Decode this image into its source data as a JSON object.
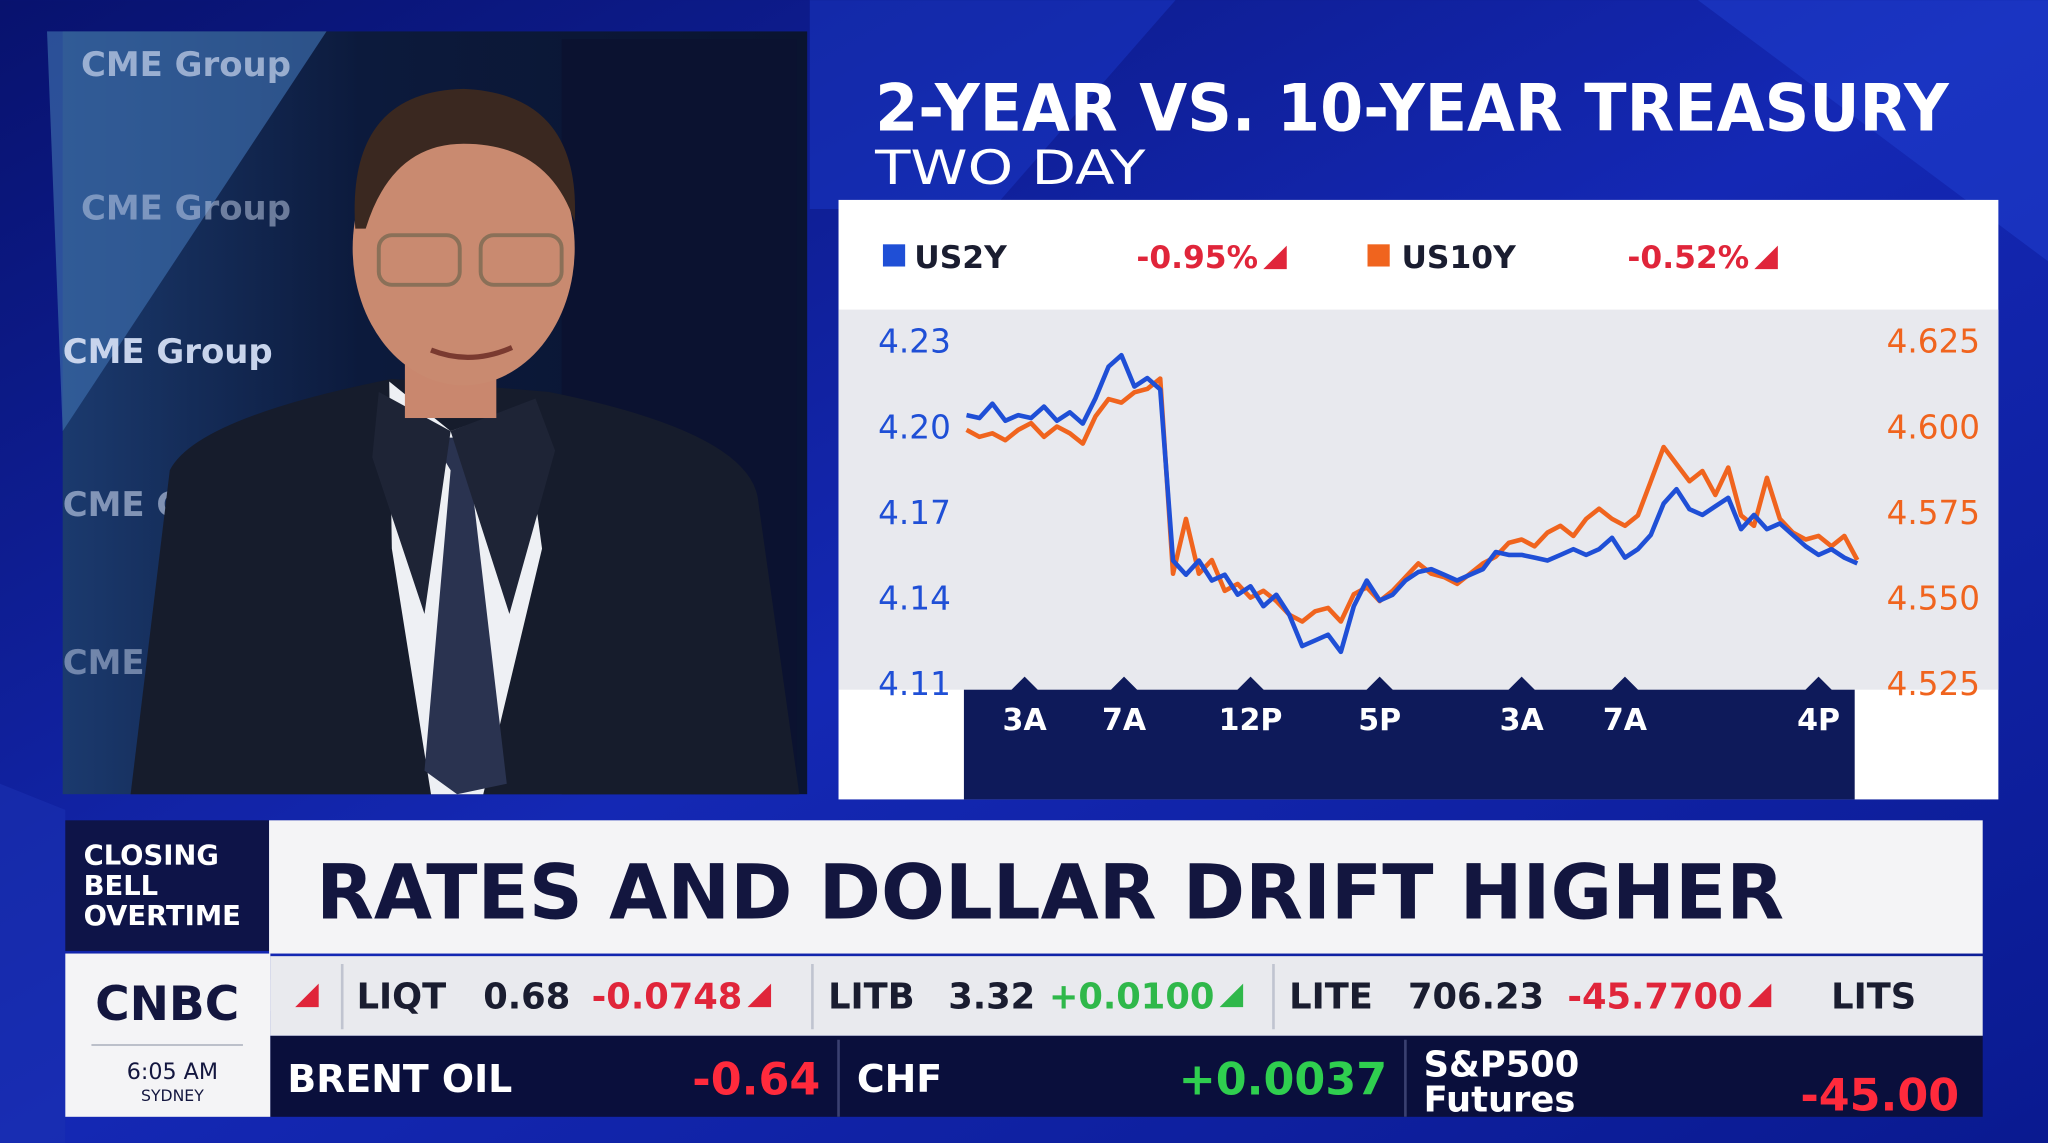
{
  "background": {
    "logo": "CME Group"
  },
  "chart_data": {
    "type": "line",
    "title": "2-YEAR VS. 10-YEAR TREASURY",
    "subtitle": "TWO DAY",
    "x": [
      0,
      1,
      2,
      3,
      4,
      5,
      6,
      7,
      8,
      9,
      10,
      11,
      12,
      13,
      14,
      15,
      16,
      17,
      18,
      19,
      20,
      21,
      22,
      23,
      24,
      25,
      26,
      27,
      28,
      29,
      30,
      31,
      32,
      33,
      34,
      35,
      36,
      37,
      38,
      39,
      40,
      41,
      42,
      43,
      44,
      45,
      46,
      47,
      48,
      49,
      50,
      51,
      52,
      53,
      54,
      55,
      56,
      57,
      58,
      59,
      60,
      61,
      62,
      63,
      64,
      65,
      66,
      67,
      68,
      69
    ],
    "xlim": [
      0,
      69
    ],
    "xticks": [
      {
        "value": 4.5,
        "label": "3A"
      },
      {
        "value": 12.2,
        "label": "7A"
      },
      {
        "value": 22,
        "label": "12P"
      },
      {
        "value": 32,
        "label": "5P"
      },
      {
        "value": 43,
        "label": "3A"
      },
      {
        "value": 51,
        "label": "7A"
      },
      {
        "value": 66,
        "label": "4P"
      }
    ],
    "ylim": [
      4.11,
      4.23
    ],
    "yticks": [
      4.23,
      {
        "value": 4.2,
        "label": "4.20"
      },
      4.17,
      4.14,
      4.11
    ],
    "y2lim": [
      4.525,
      4.625
    ],
    "y2ticks": [
      4.625,
      {
        "value": 4.6,
        "label": "4.600"
      },
      4.575,
      {
        "value": 4.55,
        "label": "4.550"
      },
      4.525
    ],
    "series": [
      {
        "name": "US2Y",
        "change": "-0.95%",
        "color": "#1f4fd6",
        "values": [
          4.204,
          4.203,
          4.208,
          4.202,
          4.204,
          4.203,
          4.207,
          4.202,
          4.205,
          4.201,
          4.21,
          4.221,
          4.225,
          4.214,
          4.217,
          4.213,
          4.153,
          4.148,
          4.153,
          4.146,
          4.148,
          4.141,
          4.144,
          4.137,
          4.141,
          4.134,
          4.123,
          4.125,
          4.127,
          4.121,
          4.137,
          4.146,
          4.139,
          4.141,
          4.146,
          4.149,
          4.15,
          4.148,
          4.146,
          4.148,
          4.15,
          4.156,
          4.155,
          4.155,
          4.154,
          4.153,
          4.155,
          4.157,
          4.155,
          4.157,
          4.161,
          4.154,
          4.157,
          4.162,
          4.173,
          4.178,
          4.171,
          4.169,
          4.172,
          4.175,
          4.164,
          4.169,
          4.164,
          4.166,
          4.162,
          4.158,
          4.155,
          4.157,
          4.154,
          4.152
        ]
      },
      {
        "name": "US10Y",
        "change": "-0.52%",
        "color": "#f0641e",
        "axis": "y2",
        "values": [
          4.599,
          4.597,
          4.598,
          4.596,
          4.599,
          4.601,
          4.597,
          4.6,
          4.598,
          4.595,
          4.603,
          4.608,
          4.607,
          4.61,
          4.611,
          4.614,
          4.557,
          4.573,
          4.557,
          4.561,
          4.552,
          4.554,
          4.55,
          4.552,
          4.549,
          4.545,
          4.543,
          4.546,
          4.547,
          4.543,
          4.551,
          4.553,
          4.549,
          4.552,
          4.556,
          4.56,
          4.557,
          4.556,
          4.554,
          4.557,
          4.56,
          4.562,
          4.566,
          4.567,
          4.565,
          4.569,
          4.571,
          4.568,
          4.573,
          4.576,
          4.573,
          4.571,
          4.574,
          4.584,
          4.594,
          4.589,
          4.584,
          4.587,
          4.58,
          4.588,
          4.574,
          4.571,
          4.585,
          4.573,
          4.569,
          4.567,
          4.568,
          4.565,
          4.568,
          4.561
        ]
      }
    ]
  },
  "banner": {
    "show": [
      "CLOSING",
      "BELL",
      "OVERTIME"
    ],
    "headline": "RATES AND DOLLAR DRIFT HIGHER",
    "network": "CNBC",
    "time": "6:05 AM",
    "city": "SYDNEY"
  },
  "ticker": [
    {
      "symbol": "LIQT",
      "price": "0.68",
      "change": "-0.0748"
    },
    {
      "symbol": "LITB",
      "price": "3.32",
      "change": "+0.0100"
    },
    {
      "symbol": "LITE",
      "price": "706.23",
      "change": "-45.7700"
    },
    {
      "symbol": "LITS"
    }
  ],
  "markets": [
    {
      "name": [
        "BRENT OIL"
      ],
      "change": "-0.64"
    },
    {
      "name": [
        "CHF"
      ],
      "change": "+0.0037"
    },
    {
      "name": [
        "S&P500",
        "Futures"
      ],
      "change": "-45.00"
    }
  ]
}
